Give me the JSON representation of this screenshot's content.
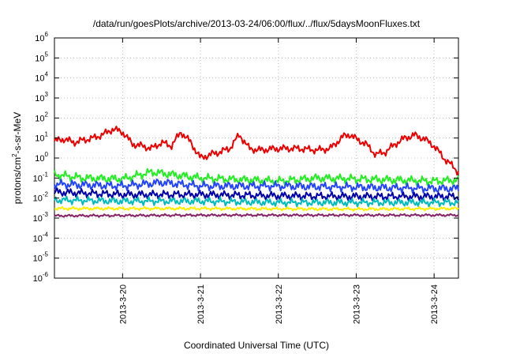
{
  "chart_data": {
    "type": "line",
    "title": "/data/run/goesPlots/archive/2013-03-24/06:00/flux/../flux/5daysMoonFluxes.txt",
    "xlabel": "Coordinated Universal Time (UTC)",
    "ylabel": {
      "prefix": "protons/cm",
      "sup": "2",
      "suffix": "-s-sr-MeV"
    },
    "yscale": "log",
    "ylim": [
      1e-06,
      1000000.0
    ],
    "xlim": [
      "2013-03-19 03:00",
      "2013-03-24 07:30"
    ],
    "grid": true,
    "legend": "none",
    "x_ticks": [
      "2013-3-20",
      "2013-3-21",
      "2013-3-22",
      "2013-3-23",
      "2013-3-24"
    ],
    "y_ticks": [
      {
        "base": "10",
        "exp": "6"
      },
      {
        "base": "10",
        "exp": "5"
      },
      {
        "base": "10",
        "exp": "4"
      },
      {
        "base": "10",
        "exp": "3"
      },
      {
        "base": "10",
        "exp": "2"
      },
      {
        "base": "10",
        "exp": "1"
      },
      {
        "base": "10",
        "exp": "0"
      },
      {
        "base": "10",
        "exp": "-1"
      },
      {
        "base": "10",
        "exp": "-2"
      },
      {
        "base": "10",
        "exp": "-3"
      },
      {
        "base": "10",
        "exp": "-4"
      },
      {
        "base": "10",
        "exp": "-5"
      },
      {
        "base": "10",
        "exp": "-6"
      }
    ],
    "series": [
      {
        "color": "#ee0000",
        "points": [
          [
            "2013-03-19 03:00",
            7
          ],
          [
            "2013-03-19 06:00",
            9
          ],
          [
            "2013-03-19 09:00",
            6
          ],
          [
            "2013-03-19 12:00",
            8
          ],
          [
            "2013-03-19 15:00",
            10
          ],
          [
            "2013-03-19 18:00",
            15
          ],
          [
            "2013-03-19 21:00",
            28
          ],
          [
            "2013-03-20 00:00",
            20
          ],
          [
            "2013-03-20 03:00",
            5
          ],
          [
            "2013-03-20 06:00",
            4
          ],
          [
            "2013-03-20 09:00",
            3
          ],
          [
            "2013-03-20 12:00",
            6
          ],
          [
            "2013-03-20 15:00",
            4
          ],
          [
            "2013-03-20 18:00",
            20
          ],
          [
            "2013-03-20 21:00",
            6
          ],
          [
            "2013-03-21 00:00",
            1
          ],
          [
            "2013-03-21 03:00",
            1.5
          ],
          [
            "2013-03-21 06:00",
            2
          ],
          [
            "2013-03-21 09:00",
            3
          ],
          [
            "2013-03-21 12:00",
            15
          ],
          [
            "2013-03-21 15:00",
            3
          ],
          [
            "2013-03-21 18:00",
            2.5
          ],
          [
            "2013-03-22 00:00",
            3
          ],
          [
            "2013-03-22 06:00",
            3
          ],
          [
            "2013-03-22 12:00",
            2.5
          ],
          [
            "2013-03-22 16:00",
            3
          ],
          [
            "2013-03-22 20:00",
            12
          ],
          [
            "2013-03-22 22:00",
            15
          ],
          [
            "2013-03-23 00:00",
            9
          ],
          [
            "2013-03-23 03:00",
            5
          ],
          [
            "2013-03-23 06:00",
            1.5
          ],
          [
            "2013-03-23 09:00",
            2
          ],
          [
            "2013-03-23 12:00",
            5
          ],
          [
            "2013-03-23 15:00",
            10
          ],
          [
            "2013-03-23 18:00",
            14
          ],
          [
            "2013-03-23 21:00",
            9
          ],
          [
            "2013-03-24 00:00",
            4
          ],
          [
            "2013-03-24 03:00",
            1
          ],
          [
            "2013-03-24 05:00",
            0.5
          ],
          [
            "2013-03-24 07:30",
            0.2
          ]
        ]
      },
      {
        "color": "#22ee22",
        "points": [
          [
            "2013-03-19 03:00",
            0.15
          ],
          [
            "2013-03-19 12:00",
            0.1
          ],
          [
            "2013-03-20 00:00",
            0.09
          ],
          [
            "2013-03-20 09:00",
            0.2
          ],
          [
            "2013-03-21 00:00",
            0.1
          ],
          [
            "2013-03-22 00:00",
            0.07
          ],
          [
            "2013-03-22 12:00",
            0.1
          ],
          [
            "2013-03-23 00:00",
            0.09
          ],
          [
            "2013-03-23 12:00",
            0.08
          ],
          [
            "2013-03-24 00:00",
            0.07
          ],
          [
            "2013-03-24 07:30",
            0.08
          ]
        ]
      },
      {
        "color": "#2244ff",
        "points": [
          [
            "2013-03-19 03:00",
            0.05
          ],
          [
            "2013-03-20 00:00",
            0.04
          ],
          [
            "2013-03-20 12:00",
            0.06
          ],
          [
            "2013-03-21 00:00",
            0.04
          ],
          [
            "2013-03-22 00:00",
            0.04
          ],
          [
            "2013-03-23 00:00",
            0.035
          ],
          [
            "2013-03-24 00:00",
            0.03
          ],
          [
            "2013-03-24 07:30",
            0.03
          ]
        ]
      },
      {
        "color": "#0000aa",
        "points": [
          [
            "2013-03-19 03:00",
            0.02
          ],
          [
            "2013-03-20 00:00",
            0.015
          ],
          [
            "2013-03-21 00:00",
            0.015
          ],
          [
            "2013-03-22 00:00",
            0.013
          ],
          [
            "2013-03-23 00:00",
            0.012
          ],
          [
            "2013-03-24 07:30",
            0.012
          ]
        ]
      },
      {
        "color": "#00bbbb",
        "points": [
          [
            "2013-03-19 03:00",
            0.008
          ],
          [
            "2013-03-20 00:00",
            0.007
          ],
          [
            "2013-03-21 00:00",
            0.007
          ],
          [
            "2013-03-22 00:00",
            0.006
          ],
          [
            "2013-03-23 00:00",
            0.006
          ],
          [
            "2013-03-24 07:30",
            0.006
          ]
        ]
      },
      {
        "color": "#ffee00",
        "points": [
          [
            "2013-03-19 03:00",
            0.003
          ],
          [
            "2013-03-21 00:00",
            0.003
          ],
          [
            "2013-03-23 00:00",
            0.0028
          ],
          [
            "2013-03-24 07:30",
            0.003
          ]
        ]
      },
      {
        "color": "#882266",
        "points": [
          [
            "2013-03-19 03:00",
            0.0013
          ],
          [
            "2013-03-21 00:00",
            0.0014
          ],
          [
            "2013-03-23 00:00",
            0.0014
          ],
          [
            "2013-03-24 07:30",
            0.0014
          ]
        ]
      }
    ]
  }
}
